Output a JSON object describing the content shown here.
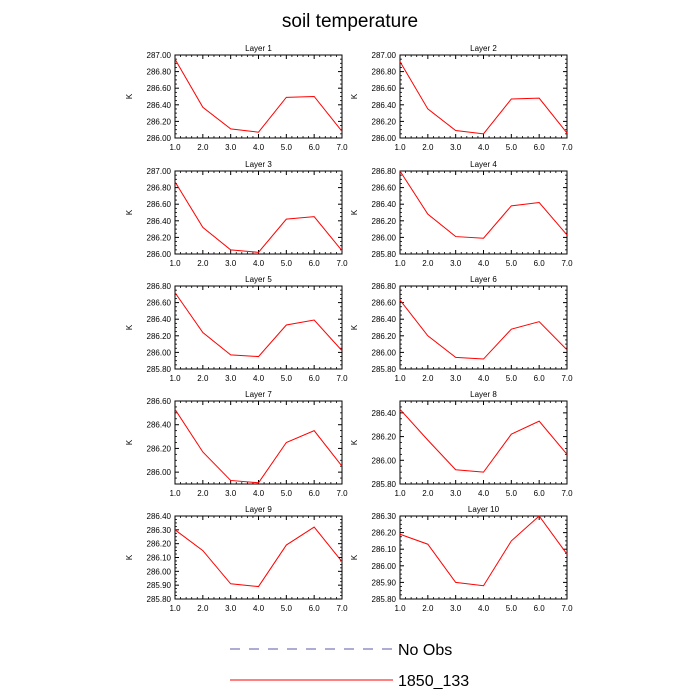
{
  "title": "soil temperature",
  "chart_data": [
    {
      "type": "line",
      "title": "Layer 1",
      "ylabel": "K",
      "x": [
        1,
        2,
        3,
        4,
        5,
        6,
        7
      ],
      "x_ticks": [
        "1.0",
        "2.0",
        "3.0",
        "4.0",
        "5.0",
        "6.0",
        "7.0"
      ],
      "ylim": [
        286.0,
        287.0
      ],
      "y_ticks": [
        "286.00",
        "286.20",
        "286.40",
        "286.60",
        "286.80",
        "287.00"
      ],
      "series": [
        {
          "name": "1850_133",
          "values": [
            286.95,
            286.37,
            286.11,
            286.07,
            286.49,
            286.5,
            286.08
          ]
        }
      ]
    },
    {
      "type": "line",
      "title": "Layer 2",
      "ylabel": "K",
      "x": [
        1,
        2,
        3,
        4,
        5,
        6,
        7
      ],
      "x_ticks": [
        "1.0",
        "2.0",
        "3.0",
        "4.0",
        "5.0",
        "6.0",
        "7.0"
      ],
      "ylim": [
        286.0,
        287.0
      ],
      "y_ticks": [
        "286.00",
        "286.20",
        "286.40",
        "286.60",
        "286.80",
        "287.00"
      ],
      "series": [
        {
          "name": "1850_133",
          "values": [
            286.92,
            286.35,
            286.09,
            286.05,
            286.47,
            286.48,
            286.06
          ]
        }
      ]
    },
    {
      "type": "line",
      "title": "Layer 3",
      "ylabel": "K",
      "x": [
        1,
        2,
        3,
        4,
        5,
        6,
        7
      ],
      "x_ticks": [
        "1.0",
        "2.0",
        "3.0",
        "4.0",
        "5.0",
        "6.0",
        "7.0"
      ],
      "ylim": [
        286.0,
        287.0
      ],
      "y_ticks": [
        "286.00",
        "286.20",
        "286.40",
        "286.60",
        "286.80",
        "287.00"
      ],
      "series": [
        {
          "name": "1850_133",
          "values": [
            286.87,
            286.32,
            286.05,
            286.02,
            286.42,
            286.45,
            286.04
          ]
        }
      ]
    },
    {
      "type": "line",
      "title": "Layer 4",
      "ylabel": "K",
      "x": [
        1,
        2,
        3,
        4,
        5,
        6,
        7
      ],
      "x_ticks": [
        "1.0",
        "2.0",
        "3.0",
        "4.0",
        "5.0",
        "6.0",
        "7.0"
      ],
      "ylim": [
        285.8,
        286.8
      ],
      "y_ticks": [
        "285.80",
        "286.00",
        "286.20",
        "286.40",
        "286.60",
        "286.80"
      ],
      "series": [
        {
          "name": "1850_133",
          "values": [
            286.8,
            286.28,
            286.01,
            285.99,
            286.38,
            286.42,
            286.03
          ]
        }
      ]
    },
    {
      "type": "line",
      "title": "Layer 5",
      "ylabel": "K",
      "x": [
        1,
        2,
        3,
        4,
        5,
        6,
        7
      ],
      "x_ticks": [
        "1.0",
        "2.0",
        "3.0",
        "4.0",
        "5.0",
        "6.0",
        "7.0"
      ],
      "ylim": [
        285.8,
        286.8
      ],
      "y_ticks": [
        "285.80",
        "286.00",
        "286.20",
        "286.40",
        "286.60",
        "286.80"
      ],
      "series": [
        {
          "name": "1850_133",
          "values": [
            286.72,
            286.24,
            285.97,
            285.95,
            286.33,
            286.39,
            286.02
          ]
        }
      ]
    },
    {
      "type": "line",
      "title": "Layer 6",
      "ylabel": "K",
      "x": [
        1,
        2,
        3,
        4,
        5,
        6,
        7
      ],
      "x_ticks": [
        "1.0",
        "2.0",
        "3.0",
        "4.0",
        "5.0",
        "6.0",
        "7.0"
      ],
      "ylim": [
        285.8,
        286.8
      ],
      "y_ticks": [
        "285.80",
        "286.00",
        "286.20",
        "286.40",
        "286.60",
        "286.80"
      ],
      "series": [
        {
          "name": "1850_133",
          "values": [
            286.63,
            286.2,
            285.94,
            285.92,
            286.28,
            286.37,
            286.03
          ]
        }
      ]
    },
    {
      "type": "line",
      "title": "Layer 7",
      "ylabel": "K",
      "x": [
        1,
        2,
        3,
        4,
        5,
        6,
        7
      ],
      "x_ticks": [
        "1.0",
        "2.0",
        "3.0",
        "4.0",
        "5.0",
        "6.0",
        "7.0"
      ],
      "ylim": [
        285.9,
        286.6
      ],
      "y_ticks": [
        "286.00",
        "286.20",
        "286.40",
        "286.60"
      ],
      "y_tick_values": [
        286.0,
        286.2,
        286.4,
        286.6
      ],
      "series": [
        {
          "name": "1850_133",
          "values": [
            286.53,
            286.17,
            285.93,
            285.91,
            286.25,
            286.35,
            286.05
          ]
        }
      ]
    },
    {
      "type": "line",
      "title": "Layer 8",
      "ylabel": "K",
      "x": [
        1,
        2,
        3,
        4,
        5,
        6,
        7
      ],
      "x_ticks": [
        "1.0",
        "2.0",
        "3.0",
        "4.0",
        "5.0",
        "6.0",
        "7.0"
      ],
      "ylim": [
        285.8,
        286.5
      ],
      "y_ticks": [
        "285.80",
        "286.00",
        "286.20",
        "286.40"
      ],
      "y_tick_values": [
        285.8,
        286.0,
        286.2,
        286.4
      ],
      "series": [
        {
          "name": "1850_133",
          "values": [
            286.43,
            286.17,
            285.92,
            285.9,
            286.22,
            286.33,
            286.05
          ]
        }
      ]
    },
    {
      "type": "line",
      "title": "Layer 9",
      "ylabel": "K",
      "x": [
        1,
        2,
        3,
        4,
        5,
        6,
        7
      ],
      "x_ticks": [
        "1.0",
        "2.0",
        "3.0",
        "4.0",
        "5.0",
        "6.0",
        "7.0"
      ],
      "ylim": [
        285.8,
        286.4
      ],
      "y_ticks": [
        "285.80",
        "285.90",
        "286.00",
        "286.10",
        "286.20",
        "286.30",
        "286.40"
      ],
      "series": [
        {
          "name": "1850_133",
          "values": [
            286.3,
            286.15,
            285.91,
            285.89,
            286.19,
            286.32,
            286.07
          ]
        }
      ]
    },
    {
      "type": "line",
      "title": "Layer 10",
      "ylabel": "K",
      "x": [
        1,
        2,
        3,
        4,
        5,
        6,
        7
      ],
      "x_ticks": [
        "1.0",
        "2.0",
        "3.0",
        "4.0",
        "5.0",
        "6.0",
        "7.0"
      ],
      "ylim": [
        285.8,
        286.3
      ],
      "y_ticks": [
        "285.80",
        "285.90",
        "286.00",
        "286.10",
        "286.20",
        "286.30"
      ],
      "series": [
        {
          "name": "1850_133",
          "values": [
            286.19,
            286.13,
            285.9,
            285.88,
            286.15,
            286.3,
            286.07
          ]
        }
      ]
    }
  ],
  "legend": [
    {
      "label": "No Obs",
      "color": "#5a5aa8",
      "dashed": true
    },
    {
      "label": "1850_133",
      "color": "#ff0000",
      "dashed": false
    }
  ],
  "colors": {
    "series": "#ff0000",
    "axis": "#000000"
  }
}
